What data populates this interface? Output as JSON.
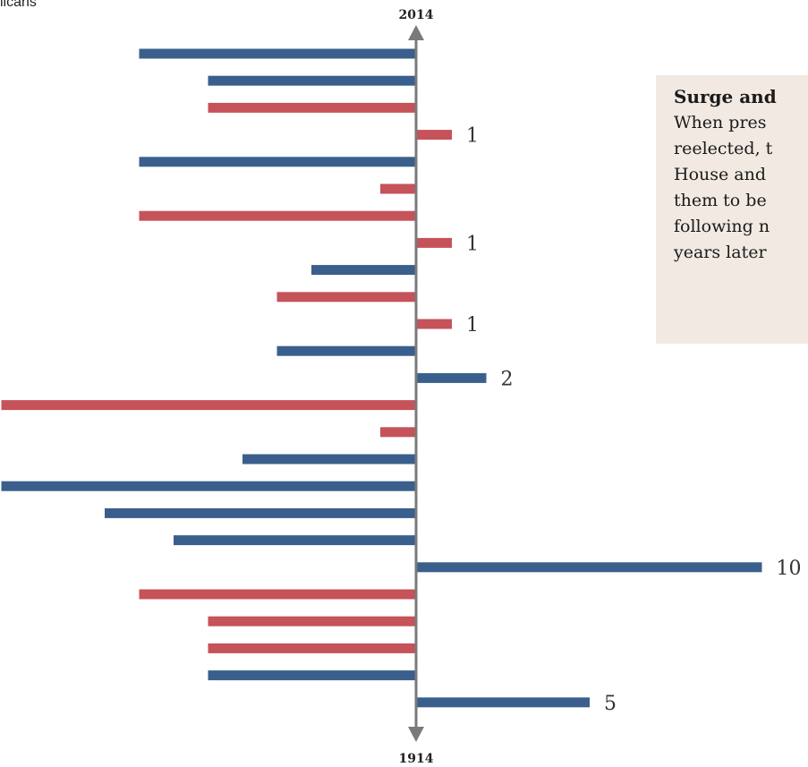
{
  "legend_fragment": "licans",
  "colors": {
    "democrat": "#3a5f8c",
    "republican": "#c6525a",
    "axis": "#7a7a7a"
  },
  "note": {
    "title": "Surge and",
    "lines": [
      "When pres",
      "reelected, t",
      "House and",
      "them to be",
      "following n",
      "years later"
    ]
  },
  "chart_data": {
    "type": "bar",
    "orientation": "horizontal-diverging",
    "axis": {
      "top_label": "2014",
      "bottom_label": "1914"
    },
    "bars": [
      {
        "side": "left",
        "party": "D",
        "value": 8
      },
      {
        "side": "left",
        "party": "D",
        "value": 6
      },
      {
        "side": "left",
        "party": "R",
        "value": 6
      },
      {
        "side": "right",
        "party": "R",
        "value": 1,
        "label": "1"
      },
      {
        "side": "left",
        "party": "D",
        "value": 8
      },
      {
        "side": "left",
        "party": "R",
        "value": 1
      },
      {
        "side": "left",
        "party": "R",
        "value": 8
      },
      {
        "side": "right",
        "party": "R",
        "value": 1,
        "label": "1"
      },
      {
        "side": "left",
        "party": "D",
        "value": 3
      },
      {
        "side": "left",
        "party": "R",
        "value": 4
      },
      {
        "side": "right",
        "party": "R",
        "value": 1,
        "label": "1"
      },
      {
        "side": "left",
        "party": "D",
        "value": 4
      },
      {
        "side": "right",
        "party": "D",
        "value": 2,
        "label": "2"
      },
      {
        "side": "left",
        "party": "R",
        "value": 12
      },
      {
        "side": "left",
        "party": "R",
        "value": 1
      },
      {
        "side": "left",
        "party": "D",
        "value": 5
      },
      {
        "side": "left",
        "party": "D",
        "value": 12
      },
      {
        "side": "left",
        "party": "D",
        "value": 9
      },
      {
        "side": "left",
        "party": "D",
        "value": 7
      },
      {
        "side": "right",
        "party": "D",
        "value": 10,
        "label": "10"
      },
      {
        "side": "left",
        "party": "R",
        "value": 8
      },
      {
        "side": "left",
        "party": "R",
        "value": 6
      },
      {
        "side": "left",
        "party": "R",
        "value": 6
      },
      {
        "side": "left",
        "party": "D",
        "value": 6
      },
      {
        "side": "right",
        "party": "D",
        "value": 5,
        "label": "5"
      }
    ]
  }
}
